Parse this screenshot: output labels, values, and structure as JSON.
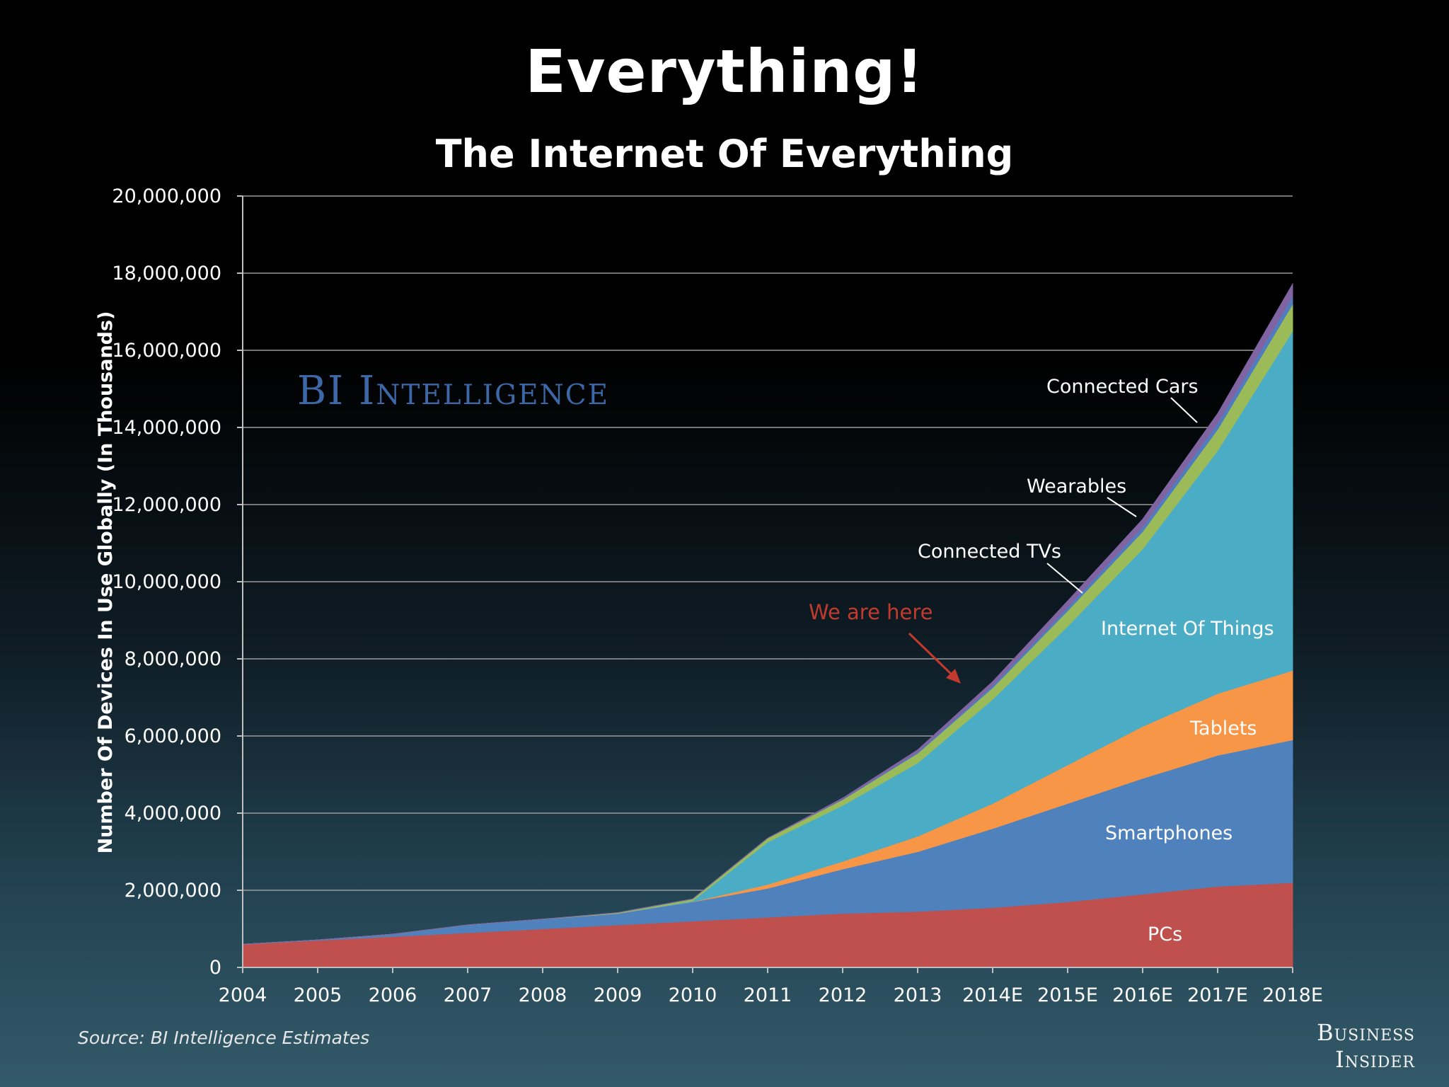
{
  "slide_title": "Everything!",
  "source": "Source: BI Intelligence Estimates",
  "watermark": "BI Intelligence",
  "publisher": [
    "Business",
    "Insider"
  ],
  "chart_data": {
    "type": "area",
    "stacked": true,
    "title": "The Internet Of Everything",
    "xlabel": "",
    "ylabel": "Number Of Devices In Use Globally (In Thousands)",
    "ylim": [
      0,
      20000000
    ],
    "yticks": [
      0,
      2000000,
      4000000,
      6000000,
      8000000,
      10000000,
      12000000,
      14000000,
      16000000,
      18000000,
      20000000
    ],
    "ytick_labels": [
      "0",
      "2,000,000",
      "4,000,000",
      "6,000,000",
      "8,000,000",
      "10,000,000",
      "12,000,000",
      "14,000,000",
      "16,000,000",
      "18,000,000",
      "20,000,000"
    ],
    "categories": [
      "2004",
      "2005",
      "2006",
      "2007",
      "2008",
      "2009",
      "2010",
      "2011",
      "2012",
      "2013",
      "2014E",
      "2015E",
      "2016E",
      "2017E",
      "2018E"
    ],
    "grid": true,
    "series": [
      {
        "name": "PCs",
        "color": "#c0504d",
        "values": [
          600000,
          700000,
          800000,
          900000,
          1000000,
          1100000,
          1200000,
          1300000,
          1400000,
          1450000,
          1550000,
          1700000,
          1900000,
          2100000,
          2200000
        ]
      },
      {
        "name": "Smartphones",
        "color": "#4f81bd",
        "values": [
          0,
          10000,
          60000,
          200000,
          250000,
          300000,
          500000,
          750000,
          1150000,
          1550000,
          2050000,
          2550000,
          3000000,
          3400000,
          3700000
        ]
      },
      {
        "name": "Tablets",
        "color": "#f79646",
        "values": [
          0,
          0,
          0,
          0,
          0,
          0,
          5000,
          100000,
          200000,
          400000,
          650000,
          1000000,
          1350000,
          1600000,
          1800000
        ]
      },
      {
        "name": "Internet Of Things",
        "color": "#4bacc6",
        "values": [
          0,
          0,
          0,
          0,
          0,
          0,
          20000,
          1100000,
          1450000,
          1900000,
          2700000,
          3600000,
          4600000,
          6300000,
          8800000
        ]
      },
      {
        "name": "Connected TVs",
        "color": "#9bbb59",
        "values": [
          0,
          0,
          0,
          0,
          0,
          20000,
          50000,
          100000,
          150000,
          250000,
          300000,
          400000,
          450000,
          550000,
          700000
        ]
      },
      {
        "name": "Wearables",
        "color": "#4f7dbf",
        "values": [
          0,
          0,
          0,
          0,
          0,
          0,
          0,
          0,
          10000,
          30000,
          60000,
          90000,
          120000,
          160000,
          200000
        ]
      },
      {
        "name": "Connected Cars",
        "color": "#8064a2",
        "values": [
          0,
          0,
          0,
          0,
          0,
          0,
          0,
          0,
          30000,
          60000,
          100000,
          160000,
          200000,
          250000,
          320000
        ]
      }
    ],
    "series_labels": [
      "PCs",
      "Smartphones",
      "Tablets",
      "Internet Of Things",
      "Connected TVs",
      "Wearables",
      "Connected Cars"
    ],
    "annotation": "We are here"
  }
}
